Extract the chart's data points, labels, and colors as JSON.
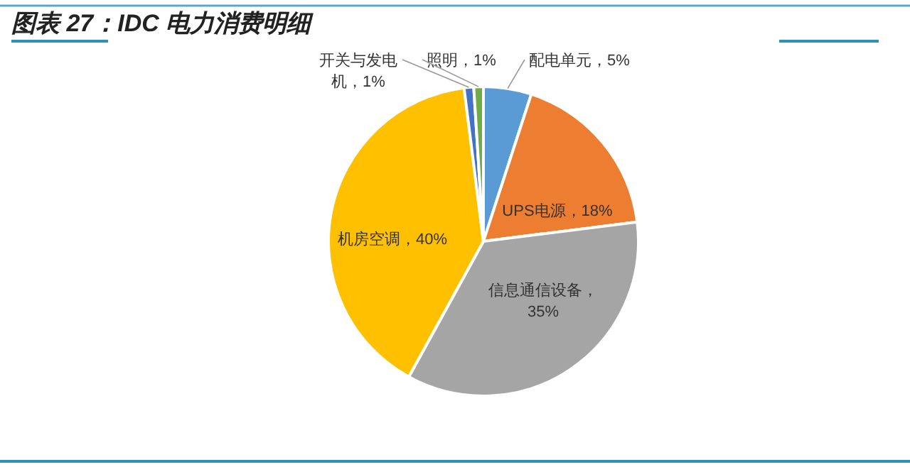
{
  "chart_data": {
    "type": "pie",
    "title": "图表 27：IDC 电力消费明细",
    "categories": [
      "配电单元",
      "UPS电源",
      "信息通信设备",
      "机房空调",
      "开关与发电机",
      "照明"
    ],
    "values": [
      5,
      18,
      35,
      40,
      1,
      1
    ],
    "colors": [
      "#5b9bd5",
      "#ed7d31",
      "#a5a5a5",
      "#ffc000",
      "#4472c4",
      "#70ad47"
    ],
    "value_labels": [
      "，5%",
      "，18%",
      "，35%",
      "，40%",
      "，1%",
      "，1%"
    ],
    "legend": false
  }
}
